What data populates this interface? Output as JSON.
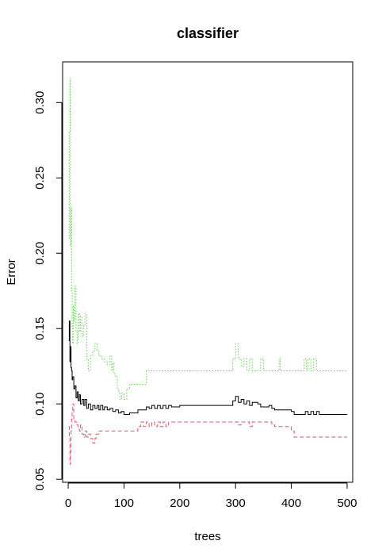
{
  "chart_data": {
    "type": "line",
    "title": "classifier",
    "xlabel": "trees",
    "ylabel": "Error",
    "xlim": [
      -10,
      510
    ],
    "ylim": [
      0.048,
      0.327
    ],
    "x_ticks": [
      0,
      100,
      200,
      300,
      400,
      500
    ],
    "x_tick_labels": [
      "0",
      "100",
      "200",
      "300",
      "400",
      "500"
    ],
    "y_ticks": [
      0.05,
      0.1,
      0.15,
      0.2,
      0.25,
      0.3
    ],
    "y_tick_labels": [
      "0.05",
      "0.10",
      "0.15",
      "0.20",
      "0.25",
      "0.30"
    ],
    "grid": false,
    "legend": "none",
    "series": [
      {
        "color": "#000000",
        "dash": "solid",
        "points": [
          [
            1,
            0.142
          ],
          [
            2,
            0.155
          ],
          [
            3,
            0.128
          ],
          [
            4,
            0.138
          ],
          [
            5,
            0.124
          ],
          [
            6,
            0.122
          ],
          [
            7,
            0.116
          ],
          [
            8,
            0.118
          ],
          [
            10,
            0.11
          ],
          [
            12,
            0.112
          ],
          [
            14,
            0.104
          ],
          [
            16,
            0.108
          ],
          [
            18,
            0.102
          ],
          [
            20,
            0.106
          ],
          [
            22,
            0.1
          ],
          [
            25,
            0.103
          ],
          [
            28,
            0.099
          ],
          [
            30,
            0.103
          ],
          [
            33,
            0.097
          ],
          [
            36,
            0.1
          ],
          [
            40,
            0.096
          ],
          [
            44,
            0.099
          ],
          [
            48,
            0.097
          ],
          [
            52,
            0.099
          ],
          [
            55,
            0.096
          ],
          [
            58,
            0.099
          ],
          [
            62,
            0.096
          ],
          [
            65,
            0.098
          ],
          [
            70,
            0.096
          ],
          [
            75,
            0.097
          ],
          [
            80,
            0.095
          ],
          [
            85,
            0.096
          ],
          [
            90,
            0.094
          ],
          [
            95,
            0.095
          ],
          [
            100,
            0.093
          ],
          [
            110,
            0.094
          ],
          [
            120,
            0.094
          ],
          [
            125,
            0.096
          ],
          [
            135,
            0.096
          ],
          [
            140,
            0.098
          ],
          [
            145,
            0.097
          ],
          [
            150,
            0.099
          ],
          [
            155,
            0.097
          ],
          [
            160,
            0.099
          ],
          [
            165,
            0.097
          ],
          [
            170,
            0.099
          ],
          [
            175,
            0.097
          ],
          [
            180,
            0.099
          ],
          [
            185,
            0.098
          ],
          [
            200,
            0.099
          ],
          [
            250,
            0.099
          ],
          [
            290,
            0.099
          ],
          [
            295,
            0.102
          ],
          [
            300,
            0.105
          ],
          [
            305,
            0.101
          ],
          [
            310,
            0.103
          ],
          [
            315,
            0.1
          ],
          [
            320,
            0.102
          ],
          [
            325,
            0.099
          ],
          [
            330,
            0.101
          ],
          [
            340,
            0.1
          ],
          [
            345,
            0.098
          ],
          [
            355,
            0.098
          ],
          [
            360,
            0.099
          ],
          [
            365,
            0.097
          ],
          [
            370,
            0.096
          ],
          [
            380,
            0.096
          ],
          [
            390,
            0.096
          ],
          [
            400,
            0.095
          ],
          [
            405,
            0.093
          ],
          [
            420,
            0.093
          ],
          [
            425,
            0.095
          ],
          [
            430,
            0.093
          ],
          [
            435,
            0.095
          ],
          [
            440,
            0.093
          ],
          [
            445,
            0.095
          ],
          [
            450,
            0.093
          ],
          [
            500,
            0.093
          ]
        ]
      },
      {
        "color": "#DF536B",
        "dash": "dashed",
        "points": [
          [
            1,
            0.085
          ],
          [
            2,
            0.078
          ],
          [
            3,
            0.06
          ],
          [
            4,
            0.068
          ],
          [
            5,
            0.082
          ],
          [
            6,
            0.09
          ],
          [
            7,
            0.095
          ],
          [
            8,
            0.1
          ],
          [
            10,
            0.09
          ],
          [
            12,
            0.088
          ],
          [
            15,
            0.086
          ],
          [
            18,
            0.084
          ],
          [
            20,
            0.082
          ],
          [
            22,
            0.086
          ],
          [
            25,
            0.08
          ],
          [
            28,
            0.078
          ],
          [
            30,
            0.082
          ],
          [
            33,
            0.078
          ],
          [
            36,
            0.08
          ],
          [
            40,
            0.077
          ],
          [
            44,
            0.074
          ],
          [
            48,
            0.077
          ],
          [
            50,
            0.08
          ],
          [
            55,
            0.082
          ],
          [
            60,
            0.082
          ],
          [
            70,
            0.082
          ],
          [
            80,
            0.082
          ],
          [
            90,
            0.082
          ],
          [
            100,
            0.082
          ],
          [
            110,
            0.082
          ],
          [
            120,
            0.082
          ],
          [
            125,
            0.085
          ],
          [
            130,
            0.088
          ],
          [
            135,
            0.085
          ],
          [
            140,
            0.088
          ],
          [
            145,
            0.085
          ],
          [
            150,
            0.088
          ],
          [
            155,
            0.085
          ],
          [
            160,
            0.088
          ],
          [
            165,
            0.085
          ],
          [
            170,
            0.088
          ],
          [
            175,
            0.085
          ],
          [
            180,
            0.088
          ],
          [
            200,
            0.088
          ],
          [
            250,
            0.088
          ],
          [
            300,
            0.088
          ],
          [
            305,
            0.086
          ],
          [
            310,
            0.088
          ],
          [
            320,
            0.088
          ],
          [
            325,
            0.085
          ],
          [
            330,
            0.088
          ],
          [
            340,
            0.088
          ],
          [
            350,
            0.088
          ],
          [
            360,
            0.088
          ],
          [
            365,
            0.086
          ],
          [
            370,
            0.085
          ],
          [
            380,
            0.085
          ],
          [
            390,
            0.085
          ],
          [
            400,
            0.082
          ],
          [
            405,
            0.078
          ],
          [
            420,
            0.078
          ],
          [
            450,
            0.078
          ],
          [
            500,
            0.078
          ]
        ]
      },
      {
        "color": "#61D04F",
        "dash": "dotted",
        "points": [
          [
            1,
            0.21
          ],
          [
            2,
            0.28
          ],
          [
            3,
            0.316
          ],
          [
            4,
            0.205
          ],
          [
            5,
            0.23
          ],
          [
            6,
            0.175
          ],
          [
            7,
            0.15
          ],
          [
            8,
            0.14
          ],
          [
            9,
            0.165
          ],
          [
            10,
            0.155
          ],
          [
            12,
            0.178
          ],
          [
            14,
            0.148
          ],
          [
            16,
            0.14
          ],
          [
            18,
            0.16
          ],
          [
            20,
            0.148
          ],
          [
            22,
            0.158
          ],
          [
            25,
            0.145
          ],
          [
            28,
            0.152
          ],
          [
            30,
            0.16
          ],
          [
            33,
            0.13
          ],
          [
            36,
            0.122
          ],
          [
            40,
            0.132
          ],
          [
            44,
            0.135
          ],
          [
            48,
            0.14
          ],
          [
            52,
            0.135
          ],
          [
            55,
            0.132
          ],
          [
            60,
            0.13
          ],
          [
            65,
            0.128
          ],
          [
            70,
            0.126
          ],
          [
            75,
            0.132
          ],
          [
            78,
            0.122
          ],
          [
            80,
            0.127
          ],
          [
            82,
            0.12
          ],
          [
            85,
            0.118
          ],
          [
            88,
            0.11
          ],
          [
            90,
            0.108
          ],
          [
            93,
            0.103
          ],
          [
            96,
            0.107
          ],
          [
            100,
            0.103
          ],
          [
            105,
            0.11
          ],
          [
            110,
            0.113
          ],
          [
            120,
            0.113
          ],
          [
            130,
            0.113
          ],
          [
            135,
            0.113
          ],
          [
            140,
            0.122
          ],
          [
            150,
            0.122
          ],
          [
            200,
            0.122
          ],
          [
            250,
            0.122
          ],
          [
            290,
            0.122
          ],
          [
            295,
            0.13
          ],
          [
            300,
            0.14
          ],
          [
            305,
            0.13
          ],
          [
            310,
            0.125
          ],
          [
            315,
            0.13
          ],
          [
            320,
            0.122
          ],
          [
            325,
            0.13
          ],
          [
            330,
            0.122
          ],
          [
            340,
            0.122
          ],
          [
            345,
            0.13
          ],
          [
            350,
            0.122
          ],
          [
            375,
            0.122
          ],
          [
            378,
            0.13
          ],
          [
            380,
            0.122
          ],
          [
            400,
            0.122
          ],
          [
            420,
            0.122
          ],
          [
            423,
            0.13
          ],
          [
            427,
            0.122
          ],
          [
            430,
            0.13
          ],
          [
            435,
            0.122
          ],
          [
            440,
            0.13
          ],
          [
            445,
            0.122
          ],
          [
            450,
            0.122
          ],
          [
            500,
            0.122
          ]
        ]
      }
    ]
  }
}
